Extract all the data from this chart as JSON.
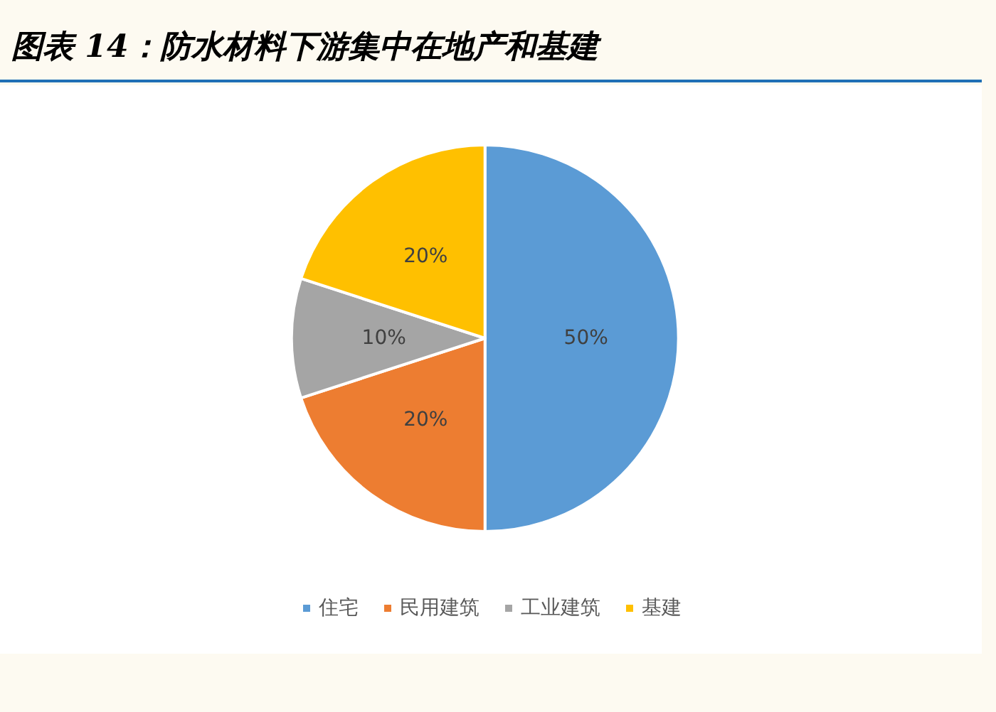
{
  "chart_data": {
    "type": "pie",
    "title": "图表 14：防水材料下游集中在地产和基建",
    "categories": [
      "住宅",
      "民用建筑",
      "工业建筑",
      "基建"
    ],
    "values": [
      50,
      20,
      10,
      20
    ],
    "colors": [
      "#5b9bd5",
      "#ed7d31",
      "#a5a5a5",
      "#ffc000"
    ],
    "value_labels": [
      "50%",
      "20%",
      "10%",
      "20%"
    ],
    "legend": "bottom"
  }
}
